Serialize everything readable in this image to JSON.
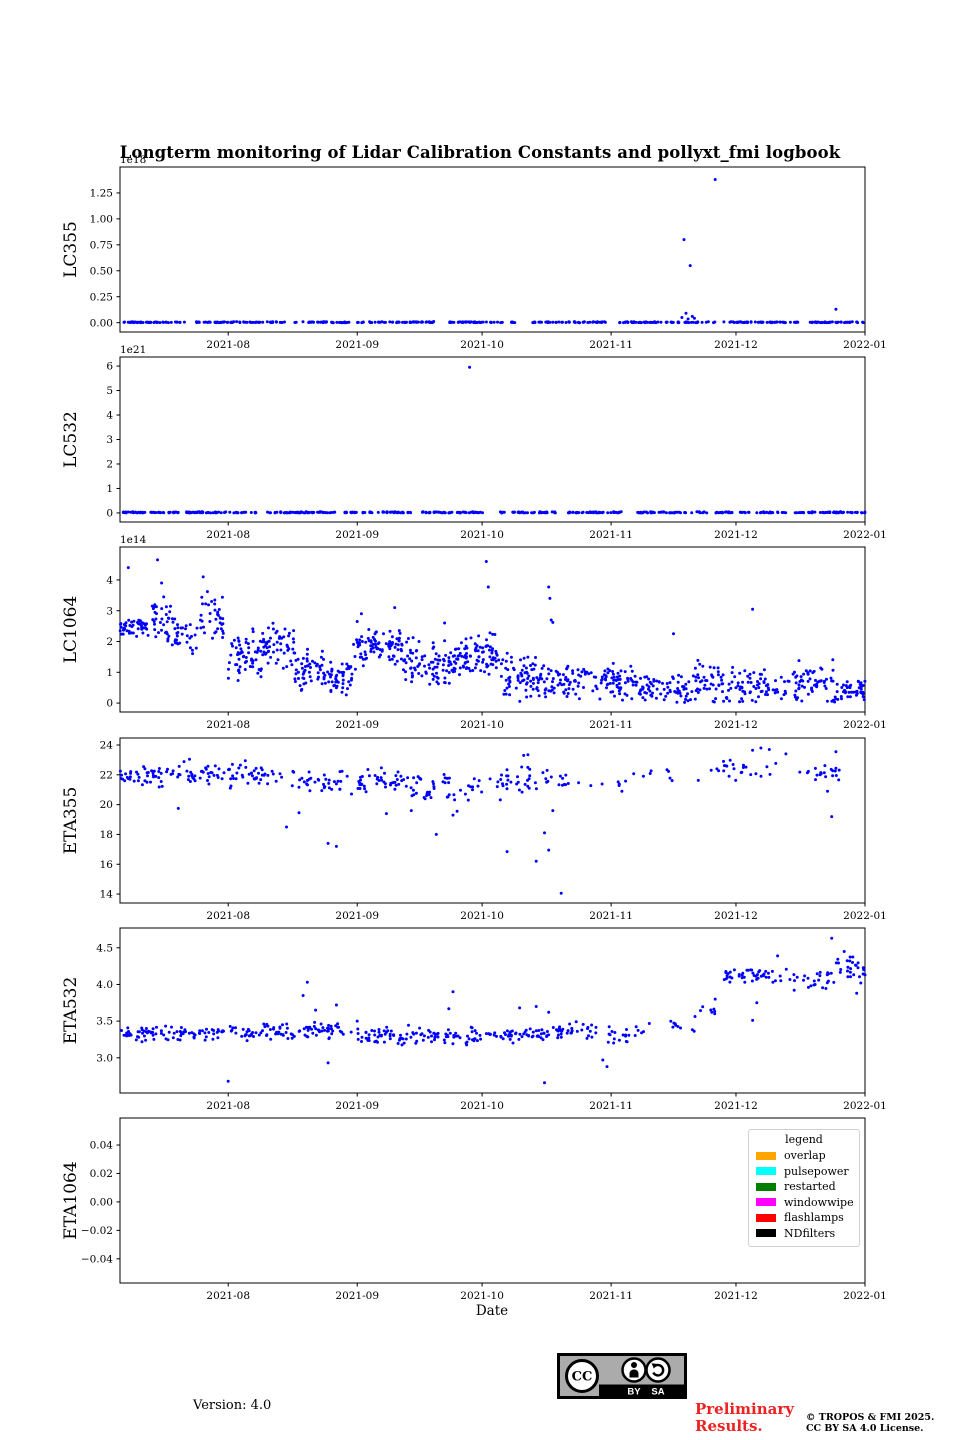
{
  "title": "Longterm monitoring of Lidar Calibration Constants and pollyxt_fmi logbook",
  "xlabel": "Date",
  "marker_color": "#0000ff",
  "legend": {
    "title": "legend",
    "items": [
      {
        "label": "overlap",
        "color": "#FFA500"
      },
      {
        "label": "pulsepower",
        "color": "#00FFFF"
      },
      {
        "label": "restarted",
        "color": "#008000"
      },
      {
        "label": "windowwipe",
        "color": "#FF00FF"
      },
      {
        "label": "flashlamps",
        "color": "#FF0000"
      },
      {
        "label": "NDfilters",
        "color": "#000000"
      }
    ]
  },
  "footer": {
    "version": "Version: 4.0",
    "preliminary": {
      "line1": "Preliminary",
      "line2": "Results.",
      "color": "#ee2222"
    },
    "copyright": {
      "line1": "© TROPOS & FMI 2025.",
      "line2": "CC BY SA 4.0 License."
    },
    "cc_badge": {
      "cc": "CC",
      "by": "BY",
      "sa": "SA"
    }
  },
  "chart_data": {
    "type": "scatter",
    "title": "Longterm monitoring of Lidar Calibration Constants and pollyxt_fmi logbook",
    "xlabel": "Date",
    "x_axis": {
      "range_days": 179,
      "ticks": [
        26,
        57,
        87,
        118,
        148,
        179
      ],
      "tick_labels": [
        "2021-08",
        "2021-09",
        "2021-10",
        "2021-11",
        "2021-12",
        "2022-01"
      ]
    },
    "bands_format": [
      "day_start",
      "day_end",
      "n_points",
      "y_mean",
      "y_spread"
    ],
    "outliers_format": [
      "day",
      "value"
    ],
    "charts": [
      {
        "name": "LC355",
        "scale_label": "1e18",
        "ylim": [
          -0.09,
          1.5
        ],
        "yticks": [
          0,
          0.25,
          0.5,
          0.75,
          1.0,
          1.25
        ],
        "ytick_labels": [
          "0.00",
          "0.25",
          "0.50",
          "0.75",
          "1.00",
          "1.25"
        ],
        "band_clip": [
          0,
          1.45
        ],
        "bands": [
          [
            0,
            16,
            48,
            0.004,
            0.004
          ],
          [
            18,
            40,
            66,
            0.004,
            0.004
          ],
          [
            42,
            55,
            40,
            0.004,
            0.004
          ],
          [
            57,
            76,
            57,
            0.004,
            0.004
          ],
          [
            79,
            96,
            50,
            0.004,
            0.004
          ],
          [
            99,
            117,
            50,
            0.004,
            0.004
          ],
          [
            120,
            143,
            66,
            0.004,
            0.004
          ],
          [
            145,
            163,
            54,
            0.004,
            0.004
          ],
          [
            165,
            179,
            44,
            0.004,
            0.004
          ]
        ],
        "outliers": [
          [
            135.5,
            0.8
          ],
          [
            137,
            0.55
          ],
          [
            135,
            0.05
          ],
          [
            136,
            0.09
          ],
          [
            136.5,
            0.035
          ],
          [
            137.5,
            0.06
          ],
          [
            138,
            0.042
          ],
          [
            143,
            1.38
          ],
          [
            172,
            0.13
          ]
        ]
      },
      {
        "name": "LC532",
        "scale_label": "1e21",
        "ylim": [
          -0.37,
          6.37
        ],
        "yticks": [
          0,
          1,
          2,
          3,
          4,
          5,
          6
        ],
        "ytick_labels": [
          "0",
          "1",
          "2",
          "3",
          "4",
          "5",
          "6"
        ],
        "band_clip": [
          0,
          6.3
        ],
        "bands": [
          [
            0,
            14,
            52,
            0.02,
            0.02
          ],
          [
            16,
            33,
            56,
            0.02,
            0.02
          ],
          [
            35,
            52,
            58,
            0.02,
            0.02
          ],
          [
            54,
            70,
            50,
            0.02,
            0.02
          ],
          [
            72,
            88,
            52,
            0.02,
            0.02
          ],
          [
            90,
            105,
            40,
            0.02,
            0.02
          ],
          [
            107,
            122,
            44,
            0.02,
            0.02
          ],
          [
            124,
            141,
            50,
            0.02,
            0.02
          ],
          [
            143,
            160,
            48,
            0.02,
            0.02
          ],
          [
            162,
            179,
            52,
            0.02,
            0.02
          ]
        ],
        "outliers": [
          [
            84,
            5.95
          ]
        ]
      },
      {
        "name": "LC1064",
        "scale_label": "1e14",
        "ylim": [
          -0.29,
          5.07
        ],
        "yticks": [
          0,
          1,
          2,
          3,
          4
        ],
        "ytick_labels": [
          "0",
          "1",
          "2",
          "3",
          "4"
        ],
        "band_clip": [
          0.01,
          4.9
        ],
        "bands": [
          [
            0,
            7,
            45,
            2.5,
            0.22
          ],
          [
            7,
            13,
            35,
            2.6,
            0.5
          ],
          [
            13,
            19,
            30,
            2.2,
            0.45
          ],
          [
            19,
            25,
            35,
            2.7,
            0.55
          ],
          [
            26,
            34,
            60,
            1.55,
            0.55
          ],
          [
            34,
            42,
            55,
            1.8,
            0.5
          ],
          [
            42,
            50,
            55,
            1.1,
            0.5
          ],
          [
            50,
            56,
            45,
            0.9,
            0.45
          ],
          [
            56,
            68,
            90,
            1.8,
            0.45
          ],
          [
            68,
            80,
            85,
            1.3,
            0.55
          ],
          [
            80,
            92,
            95,
            1.55,
            0.5
          ],
          [
            92,
            100,
            60,
            0.9,
            0.5
          ],
          [
            100,
            112,
            75,
            0.7,
            0.45
          ],
          [
            112,
            124,
            70,
            0.65,
            0.4
          ],
          [
            124,
            136,
            65,
            0.5,
            0.4
          ],
          [
            136,
            148,
            65,
            0.6,
            0.5
          ],
          [
            148,
            160,
            60,
            0.55,
            0.45
          ],
          [
            160,
            172,
            65,
            0.7,
            0.5
          ],
          [
            172,
            179,
            45,
            0.45,
            0.35
          ]
        ],
        "outliers": [
          [
            2,
            4.4
          ],
          [
            9,
            4.65
          ],
          [
            10,
            3.9
          ],
          [
            10.5,
            3.45
          ],
          [
            20,
            4.1
          ],
          [
            21,
            3.62
          ],
          [
            22,
            3.3
          ],
          [
            57,
            2.65
          ],
          [
            58,
            2.9
          ],
          [
            66,
            3.1
          ],
          [
            78,
            2.6
          ],
          [
            88,
            4.6
          ],
          [
            88.5,
            3.77
          ],
          [
            103,
            3.77
          ],
          [
            103.3,
            3.4
          ],
          [
            103.6,
            2.7
          ],
          [
            104,
            2.62
          ],
          [
            133,
            2.25
          ],
          [
            152,
            3.05
          ]
        ]
      },
      {
        "name": "ETA355",
        "scale_label": "",
        "ylim": [
          13.4,
          24.47
        ],
        "yticks": [
          14,
          16,
          18,
          20,
          22,
          24
        ],
        "ytick_labels": [
          "14",
          "16",
          "18",
          "20",
          "22",
          "24"
        ],
        "band_clip": [
          19.3,
          23.8
        ],
        "bands": [
          [
            0,
            12,
            42,
            21.9,
            0.5
          ],
          [
            12,
            25,
            40,
            22.1,
            0.5
          ],
          [
            26,
            42,
            45,
            21.9,
            0.6
          ],
          [
            43,
            56,
            35,
            21.6,
            0.6
          ],
          [
            57,
            70,
            45,
            21.5,
            0.5
          ],
          [
            70,
            87,
            45,
            21.2,
            0.7
          ],
          [
            88,
            100,
            30,
            21.6,
            0.8
          ],
          [
            100,
            108,
            15,
            21.6,
            0.6
          ],
          [
            109,
            122,
            8,
            21.2,
            0.35
          ],
          [
            123,
            140,
            9,
            21.9,
            0.6
          ],
          [
            141,
            158,
            24,
            22.4,
            0.6
          ],
          [
            163,
            173,
            20,
            22.2,
            0.35
          ]
        ],
        "outliers": [
          [
            14,
            19.75
          ],
          [
            40,
            18.5
          ],
          [
            43,
            19.45
          ],
          [
            50,
            17.4
          ],
          [
            52,
            17.2
          ],
          [
            64,
            19.4
          ],
          [
            70,
            19.6
          ],
          [
            76,
            18.0
          ],
          [
            80,
            19.3
          ],
          [
            81,
            19.55
          ],
          [
            93,
            16.85
          ],
          [
            97,
            23.3
          ],
          [
            98,
            23.35
          ],
          [
            100,
            16.2
          ],
          [
            102,
            18.1
          ],
          [
            103,
            16.95
          ],
          [
            104,
            19.6
          ],
          [
            106,
            14.05
          ],
          [
            152,
            23.65
          ],
          [
            154,
            23.8
          ],
          [
            156,
            23.7
          ],
          [
            160,
            23.4
          ],
          [
            170,
            20.9
          ],
          [
            171,
            19.2
          ],
          [
            172,
            23.55
          ]
        ]
      },
      {
        "name": "ETA532",
        "scale_label": "",
        "ylim": [
          2.52,
          4.77
        ],
        "yticks": [
          3.0,
          3.5,
          4.0,
          4.5
        ],
        "ytick_labels": [
          "3.0",
          "3.5",
          "4.0",
          "4.5"
        ],
        "band_clip": [
          2.62,
          4.7
        ],
        "bands": [
          [
            0,
            25,
            85,
            3.33,
            0.07
          ],
          [
            26,
            42,
            55,
            3.35,
            0.1
          ],
          [
            43,
            56,
            45,
            3.38,
            0.09
          ],
          [
            57,
            72,
            55,
            3.28,
            0.09
          ],
          [
            72,
            87,
            50,
            3.3,
            0.08
          ],
          [
            88,
            103,
            55,
            3.32,
            0.08
          ],
          [
            104,
            116,
            35,
            3.38,
            0.09
          ],
          [
            117,
            126,
            20,
            3.32,
            0.1
          ],
          [
            127,
            138,
            10,
            3.45,
            0.1
          ],
          [
            138,
            145,
            8,
            3.65,
            0.1
          ],
          [
            145,
            160,
            45,
            4.12,
            0.08
          ],
          [
            160,
            172,
            25,
            4.1,
            0.12
          ],
          [
            172,
            179,
            25,
            4.22,
            0.12
          ]
        ],
        "outliers": [
          [
            26,
            2.68
          ],
          [
            44,
            3.85
          ],
          [
            45,
            4.03
          ],
          [
            47,
            3.65
          ],
          [
            50,
            2.93
          ],
          [
            52,
            3.72
          ],
          [
            57,
            3.5
          ],
          [
            79,
            3.67
          ],
          [
            80,
            3.9
          ],
          [
            96,
            3.68
          ],
          [
            100,
            3.7
          ],
          [
            102,
            2.66
          ],
          [
            103,
            3.62
          ],
          [
            116,
            2.97
          ],
          [
            117,
            2.88
          ],
          [
            120,
            3.24
          ],
          [
            143,
            3.8
          ],
          [
            152,
            3.51
          ],
          [
            153,
            3.75
          ],
          [
            158,
            4.39
          ],
          [
            162,
            3.92
          ],
          [
            166,
            3.98
          ],
          [
            167,
            4.0
          ],
          [
            171,
            4.63
          ],
          [
            174,
            4.45
          ],
          [
            176,
            4.3
          ],
          [
            177,
            3.88
          ],
          [
            178,
            4.02
          ],
          [
            179,
            4.13
          ]
        ]
      },
      {
        "name": "ETA1064",
        "scale_label": "",
        "ylim": [
          -0.057,
          0.059
        ],
        "yticks": [
          -0.04,
          -0.02,
          0,
          0.02,
          0.04
        ],
        "ytick_labels": [
          "−0.04",
          "−0.02",
          "0.00",
          "0.02",
          "0.04"
        ],
        "bands": [],
        "outliers": []
      }
    ]
  }
}
